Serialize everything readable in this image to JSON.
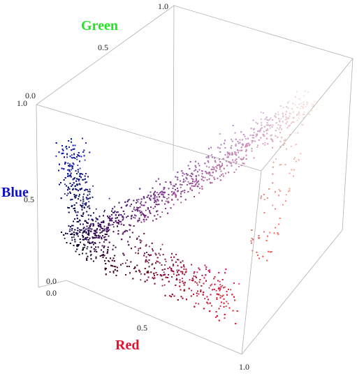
{
  "chart_data": {
    "type": "scatter",
    "dimensions": 3,
    "axes": {
      "red": {
        "label": "Red",
        "color": "#e8102a",
        "range": [
          0,
          1
        ],
        "ticks": [
          "0.0",
          "0.5",
          "1.0"
        ]
      },
      "green": {
        "label": "Green",
        "color": "#22e622",
        "range": [
          0,
          1
        ],
        "ticks": [
          "0.0",
          "0.5",
          "1.0"
        ]
      },
      "blue": {
        "label": "Blue",
        "color": "#1010c8",
        "range": [
          0,
          1
        ],
        "ticks": [
          "0.0",
          "0.5",
          "1.0"
        ]
      }
    },
    "point_color_mode": "rgb-of-coordinates",
    "grid": false,
    "legend": "none",
    "bounding_box": true,
    "clusters": [
      {
        "id": "dark-blue-wing",
        "red": [
          0.0,
          0.3
        ],
        "green": [
          0.0,
          0.3
        ],
        "blue": [
          0.35,
          0.8
        ]
      },
      {
        "id": "dark-core",
        "red": [
          0.0,
          0.4
        ],
        "green": [
          0.0,
          0.2
        ],
        "blue": [
          0.1,
          0.5
        ]
      },
      {
        "id": "red-lobe",
        "red": [
          0.4,
          0.9
        ],
        "green": [
          0.0,
          0.3
        ],
        "blue": [
          0.1,
          0.4
        ]
      },
      {
        "id": "pale-diagonal",
        "red": [
          0.3,
          1.0
        ],
        "green": [
          0.3,
          1.0
        ],
        "blue": [
          0.4,
          1.0
        ]
      },
      {
        "id": "orange-pink-edge",
        "red": [
          0.8,
          1.0
        ],
        "green": [
          0.3,
          0.8
        ],
        "blue": [
          0.3,
          0.8
        ]
      }
    ]
  }
}
